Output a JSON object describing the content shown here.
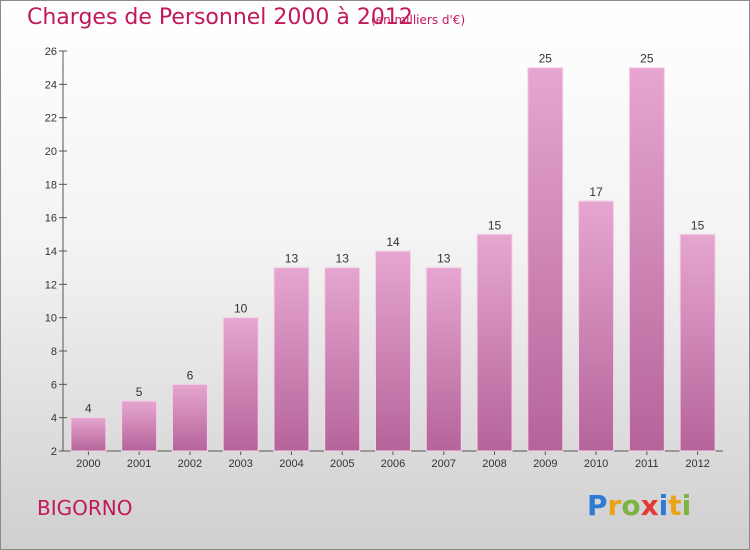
{
  "header": {
    "title": "Charges de Personnel 2000 à 2012",
    "subtitle": "(en milliers d'€)"
  },
  "footer": {
    "commune": "BIGORNO",
    "brand_letters": [
      "P",
      "r",
      "o",
      "x",
      "i",
      "t",
      "i"
    ],
    "brand_colors": [
      "#2e7bd6",
      "#e8a317",
      "#7cb342",
      "#e53935",
      "#2e7bd6",
      "#e8a317",
      "#7cb342"
    ]
  },
  "colors": {
    "accent": "#c2185b",
    "bar_top": "#e6a6d0",
    "bar_bottom": "#b5649a"
  },
  "chart_data": {
    "type": "bar",
    "categories": [
      "2000",
      "2001",
      "2002",
      "2003",
      "2004",
      "2005",
      "2006",
      "2007",
      "2008",
      "2009",
      "2010",
      "2011",
      "2012"
    ],
    "values": [
      4,
      5,
      6,
      10,
      13,
      13,
      14,
      13,
      15,
      25,
      17,
      25,
      15
    ],
    "data_labels": [
      "4",
      "5",
      "6",
      "10",
      "13",
      "13",
      "14",
      "13",
      "15",
      "25",
      "17",
      "25",
      "15"
    ],
    "yticks": [
      2,
      4,
      6,
      8,
      10,
      12,
      14,
      16,
      18,
      20,
      22,
      24,
      26
    ],
    "ylim": [
      2,
      26
    ],
    "grid": false
  }
}
